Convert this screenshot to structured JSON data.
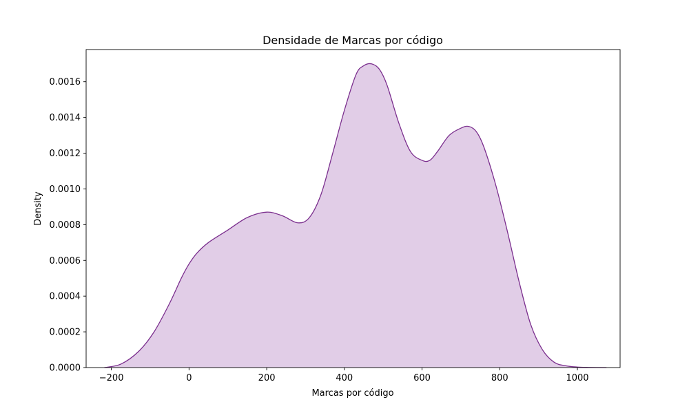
{
  "chart_data": {
    "type": "area",
    "title": "Densidade de Marcas por código",
    "xlabel": "Marcas por código",
    "ylabel": "Density",
    "xlim": [
      -265,
      1110
    ],
    "ylim": [
      0,
      0.00178
    ],
    "x_ticks": [
      -200,
      0,
      200,
      400,
      600,
      800,
      1000
    ],
    "x_tick_labels": [
      "−200",
      "0",
      "200",
      "400",
      "600",
      "800",
      "1000"
    ],
    "y_ticks": [
      0,
      0.0002,
      0.0004,
      0.0006,
      0.0008,
      0.001,
      0.0012,
      0.0014,
      0.0016
    ],
    "y_tick_labels": [
      "0.0000",
      "0.0002",
      "0.0004",
      "0.0006",
      "0.0008",
      "0.0010",
      "0.0012",
      "0.0014",
      "0.0016"
    ],
    "grid": false,
    "legend": "none",
    "series": [
      {
        "x": [
          -218,
          -175,
          -130,
          -90,
          -50,
          -20,
          0,
          20,
          50,
          100,
          150,
          200,
          240,
          280,
          310,
          340,
          370,
          400,
          430,
          450,
          470,
          490,
          510,
          540,
          570,
          600,
          620,
          640,
          670,
          700,
          720,
          740,
          760,
          790,
          820,
          850,
          880,
          910,
          940,
          970,
          1000,
          1030,
          1075
        ],
        "y": [
          0.0,
          2e-05,
          9e-05,
          0.0002,
          0.00036,
          0.0005,
          0.00058,
          0.00064,
          0.0007,
          0.00077,
          0.00084,
          0.00087,
          0.00085,
          0.00081,
          0.00084,
          0.00097,
          0.0012,
          0.00144,
          0.00164,
          0.00169,
          0.0017,
          0.00167,
          0.00158,
          0.00137,
          0.00121,
          0.00116,
          0.00116,
          0.00121,
          0.0013,
          0.00134,
          0.00135,
          0.00132,
          0.00123,
          0.00102,
          0.00076,
          0.00048,
          0.00024,
          0.0001,
          3e-05,
          1e-05,
          3e-06,
          1e-06,
          0.0
        ]
      }
    ],
    "colors": {
      "line": "#7B2F8E",
      "fill": "#E1CDE7",
      "axes": "#000000"
    }
  }
}
